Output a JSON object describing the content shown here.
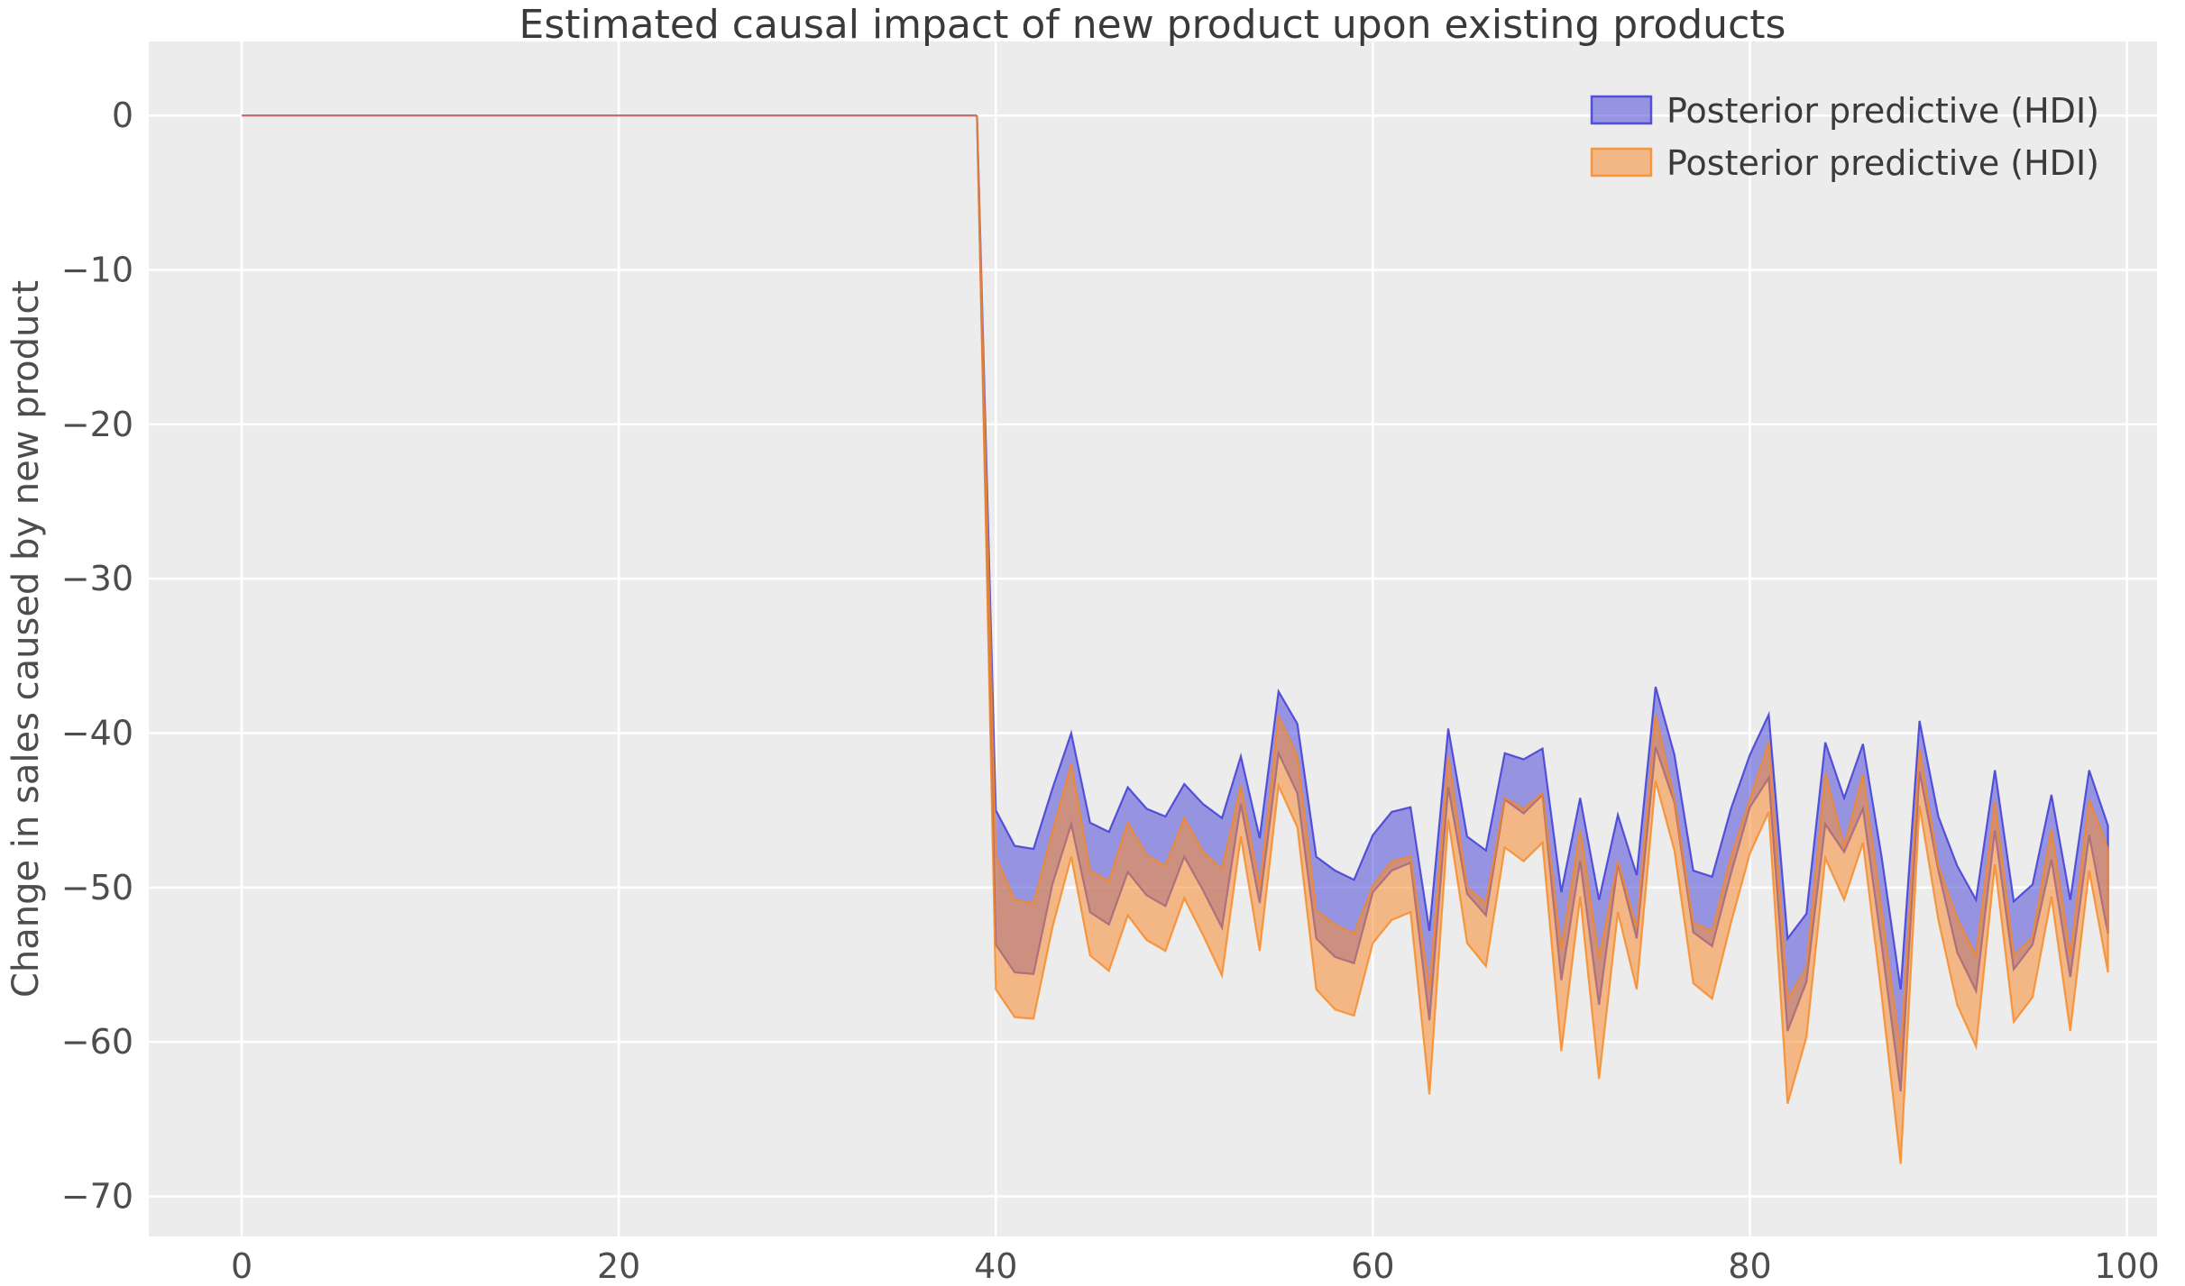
{
  "chart_data": {
    "type": "area",
    "title": "Estimated causal impact of new product upon existing products",
    "xlabel": "",
    "ylabel": "Change in sales caused by new product",
    "axes": {
      "xlim": [
        -4.93,
        101.6
      ],
      "ylim": [
        -72.6,
        4.8
      ],
      "xticks": [
        0,
        20,
        40,
        60,
        80,
        100
      ],
      "xtick_labels": [
        "0",
        "20",
        "40",
        "60",
        "80",
        "100"
      ],
      "yticks": [
        0,
        -10,
        -20,
        -30,
        -40,
        -50,
        -60,
        -70
      ],
      "ytick_labels": [
        "0",
        "−10",
        "−20",
        "−30",
        "−40",
        "−50",
        "−60",
        "−70"
      ],
      "grid": true,
      "background_color": "#ececec",
      "gridline_color": "#ffffff"
    },
    "pre_period": {
      "x_start": 0,
      "x_end": 39,
      "y": 0
    },
    "intervention_x": 39,
    "x": [
      39,
      40,
      41,
      42,
      43,
      44,
      45,
      46,
      47,
      48,
      49,
      50,
      51,
      52,
      53,
      54,
      55,
      56,
      57,
      58,
      59,
      60,
      61,
      62,
      63,
      64,
      65,
      66,
      67,
      68,
      69,
      70,
      71,
      72,
      73,
      74,
      75,
      76,
      77,
      78,
      79,
      80,
      81,
      82,
      83,
      84,
      85,
      86,
      87,
      88,
      89,
      90,
      91,
      92,
      93,
      94,
      95,
      96,
      97,
      98,
      99
    ],
    "series": [
      {
        "name": "Posterior predictive (HDI)",
        "band": "blue",
        "top": [
          0,
          -45.0,
          -47.3,
          -47.5,
          -43.6,
          -40.0,
          -45.8,
          -46.4,
          -43.5,
          -44.9,
          -45.4,
          -43.3,
          -44.6,
          -45.5,
          -41.5,
          -46.8,
          -37.3,
          -39.4,
          -48.0,
          -48.9,
          -49.5,
          -46.6,
          -45.1,
          -44.8,
          -52.8,
          -39.7,
          -46.7,
          -47.6,
          -41.3,
          -41.7,
          -41.0,
          -50.3,
          -44.2,
          -50.8,
          -45.3,
          -49.2,
          -37.0,
          -41.4,
          -48.9,
          -49.3,
          -44.9,
          -41.4,
          -38.8,
          -53.3,
          -51.7,
          -40.6,
          -44.2,
          -40.7,
          -48.1,
          -56.6,
          -39.2,
          -45.4,
          -48.6,
          -50.8,
          -42.4,
          -50.9,
          -49.8,
          -44.0,
          -50.8,
          -42.4,
          -46.0
        ],
        "bottom": [
          0,
          -53.7,
          -55.5,
          -55.6,
          -49.8,
          -45.9,
          -51.6,
          -52.4,
          -49.0,
          -50.5,
          -51.2,
          -48.0,
          -50.2,
          -52.6,
          -44.6,
          -51.0,
          -41.3,
          -43.9,
          -53.3,
          -54.5,
          -54.9,
          -50.3,
          -48.9,
          -48.4,
          -58.6,
          -43.5,
          -50.4,
          -51.8,
          -44.3,
          -45.2,
          -44.0,
          -56.0,
          -48.3,
          -57.6,
          -48.5,
          -53.3,
          -40.9,
          -44.5,
          -52.9,
          -53.8,
          -49.1,
          -44.8,
          -42.9,
          -59.3,
          -56.1,
          -45.9,
          -47.7,
          -44.9,
          -53.8,
          -63.2,
          -42.5,
          -48.9,
          -54.2,
          -56.7,
          -46.3,
          -55.3,
          -53.7,
          -48.2,
          -55.8,
          -46.6,
          -53.0
        ]
      },
      {
        "name": "Posterior predictive (HDI)",
        "band": "orange",
        "top": [
          0,
          -48.0,
          -50.8,
          -51.0,
          -46.4,
          -42.0,
          -48.9,
          -49.6,
          -45.8,
          -47.9,
          -48.6,
          -45.5,
          -47.7,
          -48.8,
          -43.4,
          -50.0,
          -38.9,
          -41.5,
          -51.5,
          -52.4,
          -53.0,
          -49.9,
          -48.3,
          -48.0,
          -56.6,
          -41.5,
          -50.0,
          -51.0,
          -44.2,
          -44.9,
          -43.9,
          -54.0,
          -46.3,
          -54.6,
          -48.3,
          -52.6,
          -38.8,
          -44.3,
          -52.3,
          -52.8,
          -48.0,
          -44.3,
          -40.6,
          -57.2,
          -55.2,
          -42.6,
          -47.3,
          -42.7,
          -51.6,
          -60.7,
          -41.0,
          -48.6,
          -52.0,
          -54.4,
          -44.4,
          -54.4,
          -53.2,
          -46.2,
          -54.4,
          -44.3,
          -47.5
        ],
        "bottom": [
          0,
          -56.6,
          -58.4,
          -58.5,
          -52.6,
          -48.0,
          -54.4,
          -55.4,
          -51.8,
          -53.4,
          -54.1,
          -50.7,
          -53.1,
          -55.7,
          -46.7,
          -54.1,
          -43.4,
          -46.1,
          -56.6,
          -57.9,
          -58.3,
          -53.6,
          -52.1,
          -51.6,
          -63.4,
          -45.6,
          -53.6,
          -55.1,
          -47.4,
          -48.3,
          -47.1,
          -60.6,
          -50.6,
          -62.4,
          -51.6,
          -56.6,
          -43.1,
          -47.6,
          -56.2,
          -57.2,
          -52.3,
          -47.8,
          -45.1,
          -64.0,
          -59.7,
          -48.1,
          -50.8,
          -47.1,
          -57.1,
          -67.9,
          -44.7,
          -52.1,
          -57.6,
          -60.3,
          -48.5,
          -58.7,
          -57.1,
          -50.6,
          -59.3,
          -48.9,
          -55.5
        ]
      }
    ],
    "legend": {
      "position": "upper right",
      "entries": [
        {
          "label": "Posterior predictive (HDI)",
          "color_key": "blue"
        },
        {
          "label": "Posterior predictive (HDI)",
          "color_key": "orange"
        }
      ]
    }
  },
  "colors": {
    "figure_background": "#ffffff",
    "plot_background": "#ececec",
    "gridline": "#ffffff",
    "blue_fill": "rgba(63,60,214,0.50)",
    "blue_edge": "rgba(63,60,214,0.85)",
    "orange_fill": "rgba(250,140,50,0.55)",
    "orange_edge": "rgba(247,135,33,0.80)",
    "pre_period_line": "#c4706f",
    "tick_text": "#4d4d4d",
    "title_text": "#3a3a3a"
  }
}
